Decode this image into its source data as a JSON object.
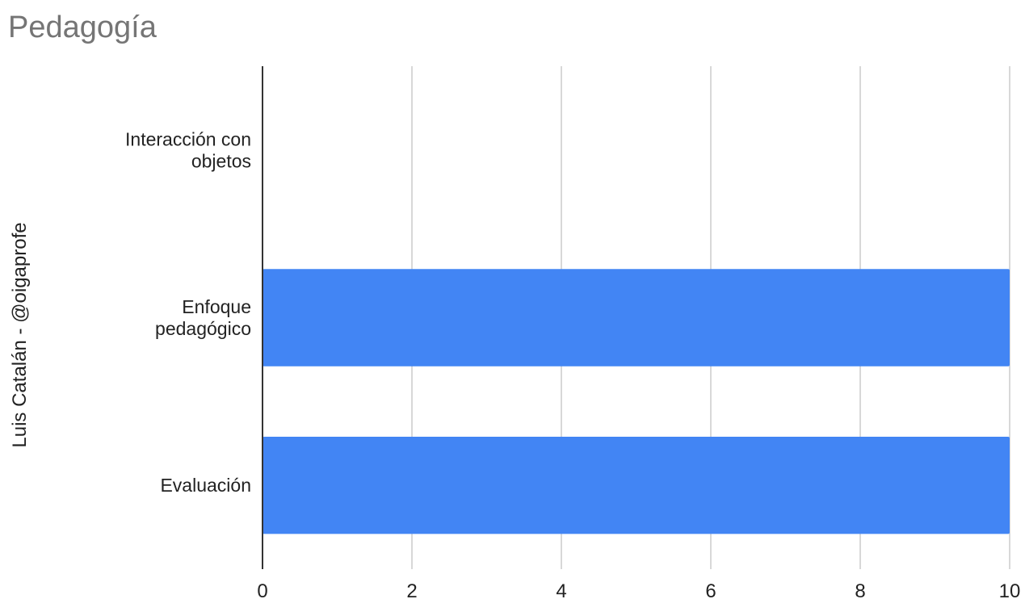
{
  "chart_data": {
    "type": "bar",
    "orientation": "horizontal",
    "title": "Pedagogía",
    "ylabel": "Luis Catalán - @oigaprofe",
    "xlabel": "",
    "categories": [
      [
        "Interacción con",
        "objetos"
      ],
      [
        "Enfoque",
        "pedagógico"
      ],
      [
        "Evaluación"
      ]
    ],
    "values": [
      0,
      10,
      10
    ],
    "xlim": [
      0,
      10
    ],
    "xticks": [
      0,
      2,
      4,
      6,
      8,
      10
    ],
    "grid": true,
    "legend": "none",
    "colors": {
      "bar": "#4285f4",
      "grid": "#cccccc",
      "axis": "#333333",
      "title": "#757575",
      "text": "#222222"
    }
  }
}
